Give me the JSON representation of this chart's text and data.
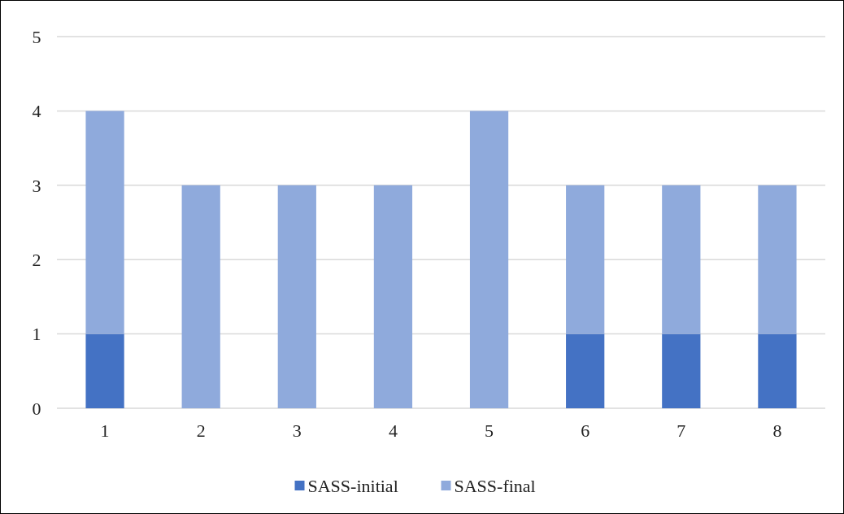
{
  "chart_data": {
    "type": "bar",
    "stacked": true,
    "categories": [
      "1",
      "2",
      "3",
      "4",
      "5",
      "6",
      "7",
      "8"
    ],
    "series": [
      {
        "name": "SASS-initial",
        "color": "#4472c4",
        "values": [
          1,
          0,
          0,
          0,
          0,
          1,
          1,
          1
        ]
      },
      {
        "name": "SASS-final",
        "color": "#8faadc",
        "values": [
          3,
          3,
          3,
          3,
          4,
          2,
          2,
          2
        ]
      }
    ],
    "ylim": [
      0,
      5
    ],
    "yticks": [
      0,
      1,
      2,
      3,
      4,
      5
    ],
    "grid": "y",
    "legend": "bottom"
  }
}
